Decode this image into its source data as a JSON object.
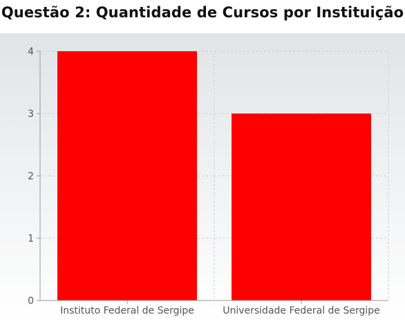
{
  "title": "Questão 2: Quantidade de Cursos por Instituição",
  "colors": {
    "bar": "#ff0000",
    "grid": "#cccccc",
    "axis": "#999999",
    "bg_top": "#e1e4e7",
    "bg_bottom": "#ffffff"
  },
  "chart_data": {
    "type": "bar",
    "title": "Questão 2: Quantidade de Cursos por Instituição",
    "categories": [
      "Instituto Federal de Sergipe",
      "Universidade Federal de Sergipe"
    ],
    "values": [
      4,
      3
    ],
    "yticks": [
      "0",
      "1",
      "2",
      "3",
      "4"
    ],
    "ylim": [
      0,
      4
    ],
    "xlabel": "",
    "ylabel": "",
    "grid": true
  }
}
